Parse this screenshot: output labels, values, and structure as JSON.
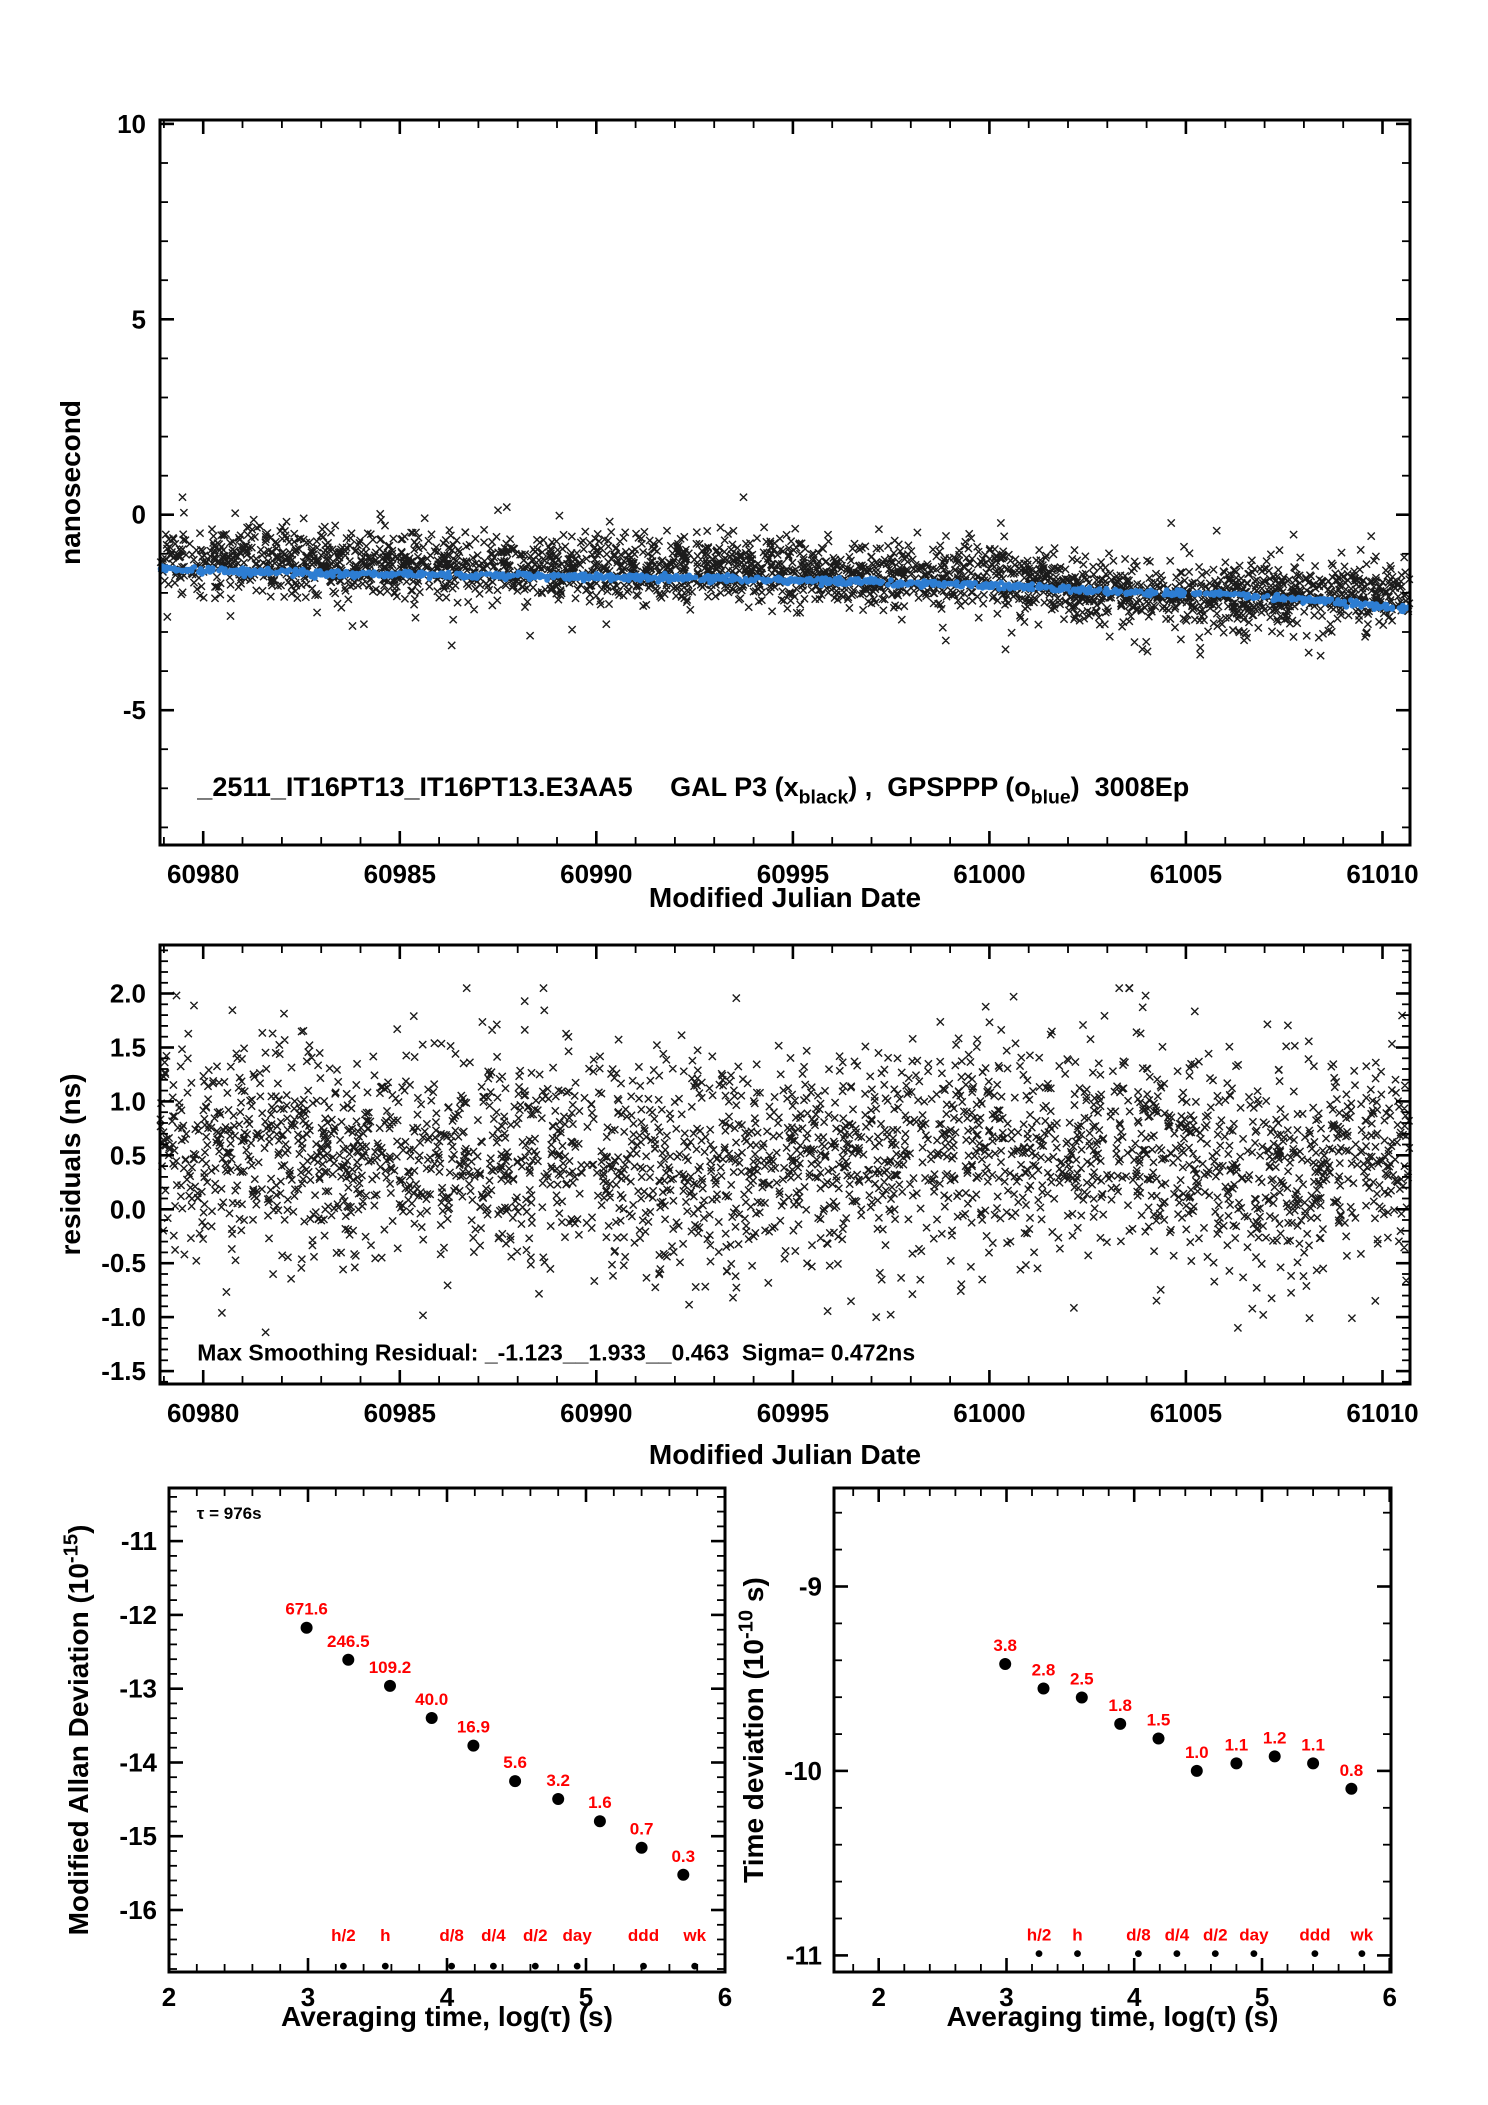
{
  "colors": {
    "background": "#ffffff",
    "axis": "#000000",
    "scatter": "#1b1b1b",
    "blue": "#2d7dd2",
    "red": "#ff0000"
  },
  "chart_data": [
    {
      "id": "phase",
      "type": "scatter",
      "xlabel": "Modified Julian Date",
      "ylabel": "nanosecond",
      "xlim": [
        60978.9,
        61010.7
      ],
      "ylim": [
        -8.45,
        10.1
      ],
      "x_minor": 1,
      "y_minor": 1,
      "xticks": [
        {
          "v": 60980,
          "t": "60980"
        },
        {
          "v": 60985,
          "t": "60985"
        },
        {
          "v": 60990,
          "t": "60990"
        },
        {
          "v": 60995,
          "t": "60995"
        },
        {
          "v": 61000,
          "t": "61000"
        },
        {
          "v": 61005,
          "t": "61005"
        },
        {
          "v": 61010,
          "t": "61010"
        }
      ],
      "yticks": [
        {
          "v": 10,
          "t": "10"
        },
        {
          "v": 5,
          "t": "5"
        },
        {
          "v": 0,
          "t": "0"
        },
        {
          "v": -5,
          "t": "-5"
        }
      ],
      "series": [
        {
          "name": "GAL P3 black x cloud",
          "marker": "x",
          "generated": true,
          "n": 2800,
          "seed": 11,
          "sigma": 0.42,
          "outlier_rate": 0.03,
          "outlier_scale": 2.4,
          "clip": [
            -4.1,
            0.45
          ],
          "trend": [
            [
              60978.9,
              -1.05
            ],
            [
              60982,
              -1.25
            ],
            [
              60986,
              -1.3
            ],
            [
              60990,
              -1.35
            ],
            [
              60994,
              -1.4
            ],
            [
              60997,
              -1.55
            ],
            [
              61000,
              -1.6
            ],
            [
              61002,
              -1.8
            ],
            [
              61004,
              -2.1
            ],
            [
              61006,
              -2.05
            ],
            [
              61008,
              -2.1
            ],
            [
              61010.7,
              -1.95
            ]
          ]
        },
        {
          "name": "GPSPPP blue o line",
          "marker": "o",
          "generated": true,
          "n": 950,
          "seed": 5,
          "sigma": 0.04,
          "clip": [
            -3.0,
            0.0
          ],
          "trend": [
            [
              60978.9,
              -1.38
            ],
            [
              60981,
              -1.45
            ],
            [
              60984,
              -1.52
            ],
            [
              60987,
              -1.55
            ],
            [
              60990,
              -1.6
            ],
            [
              60993,
              -1.62
            ],
            [
              60995,
              -1.68
            ],
            [
              60997,
              -1.72
            ],
            [
              60999,
              -1.78
            ],
            [
              61001,
              -1.85
            ],
            [
              61002.5,
              -1.95
            ],
            [
              61004,
              -2.0
            ],
            [
              61005.5,
              -2.02
            ],
            [
              61007,
              -2.1
            ],
            [
              61008.5,
              -2.2
            ],
            [
              61010,
              -2.35
            ],
            [
              61010.7,
              -2.42
            ]
          ]
        }
      ],
      "annotations": [
        {
          "role": "title",
          "anchor": "start",
          "x": 60979.85,
          "y": -7.2,
          "parts": [
            {
              "t": "_2511_IT16PT13_IT16PT13.E3AA5     GAL P3 (x"
            },
            {
              "t": "black",
              "shift": "sub"
            },
            {
              "t": ") ,  GPSPPP (o"
            },
            {
              "t": "blue",
              "shift": "sub"
            },
            {
              "t": ")  3008Ep"
            }
          ]
        }
      ]
    },
    {
      "id": "residuals",
      "type": "scatter",
      "xlabel": "Modified Julian Date",
      "ylabel": "residuals (ns)",
      "xlim": [
        60978.9,
        61010.7
      ],
      "ylim": [
        -1.62,
        2.45
      ],
      "x_minor": 1,
      "y_minor": 0.1,
      "xticks": [
        {
          "v": 60980,
          "t": "60980"
        },
        {
          "v": 60985,
          "t": "60985"
        },
        {
          "v": 60990,
          "t": "60990"
        },
        {
          "v": 60995,
          "t": "60995"
        },
        {
          "v": 61000,
          "t": "61000"
        },
        {
          "v": 61005,
          "t": "61005"
        },
        {
          "v": 61010,
          "t": "61010"
        }
      ],
      "yticks": [
        {
          "v": 2,
          "t": "2.0"
        },
        {
          "v": 1.5,
          "t": "1.5"
        },
        {
          "v": 1,
          "t": "1.0"
        },
        {
          "v": 0.5,
          "t": "0.5"
        },
        {
          "v": 0,
          "t": "0.0"
        },
        {
          "v": -0.5,
          "t": "-0.5"
        },
        {
          "v": -1,
          "t": "-1.0"
        },
        {
          "v": -1.5,
          "t": "-1.5"
        }
      ],
      "series": [
        {
          "name": "smoothing residuals cloud",
          "marker": "x",
          "generated": true,
          "n": 2800,
          "seed": 23,
          "sigma": 0.5,
          "outlier_rate": 0.02,
          "outlier_scale": 1.8,
          "clip": [
            -1.27,
            2.05
          ],
          "trend": [
            [
              60978.9,
              0.6
            ],
            [
              60990,
              0.45
            ],
            [
              60999,
              0.55
            ],
            [
              61004,
              0.6
            ],
            [
              61007,
              0.3
            ],
            [
              61010.7,
              0.55
            ]
          ]
        }
      ],
      "annotations": [
        {
          "role": "stats",
          "anchor": "start",
          "x": 60979.85,
          "y": -1.4,
          "text": "Max Smoothing Residual: _-1.123__1.933__0.463  Sigma= 0.472ns"
        }
      ]
    },
    {
      "id": "mdev",
      "type": "scatter",
      "xlabel": "Averaging time, log(τ) (s)",
      "ylabel_parts": [
        {
          "t": "Modified Allan Deviation (10"
        },
        {
          "t": "-15",
          "shift": "sup"
        },
        {
          "t": ")"
        }
      ],
      "xlim": [
        2.0,
        6.0
      ],
      "ylim": [
        -16.84,
        -10.28
      ],
      "x_minor": 0.2,
      "y_minor": 0.2,
      "xticks": [
        {
          "v": 2,
          "t": "2"
        },
        {
          "v": 3,
          "t": "3"
        },
        {
          "v": 4,
          "t": "4"
        },
        {
          "v": 5,
          "t": "5"
        },
        {
          "v": 6,
          "t": "6"
        }
      ],
      "yticks": [
        {
          "v": -11,
          "t": "-11"
        },
        {
          "v": -12,
          "t": "-12"
        },
        {
          "v": -13,
          "t": "-13"
        },
        {
          "v": -14,
          "t": "-14"
        },
        {
          "v": -15,
          "t": "-15"
        },
        {
          "v": -16,
          "t": "-16"
        }
      ],
      "points": {
        "x": [
          2.99,
          3.29,
          3.59,
          3.89,
          4.19,
          4.49,
          4.8,
          5.1,
          5.4,
          5.7
        ],
        "y": [
          -12.173,
          -12.608,
          -12.962,
          -13.398,
          -13.772,
          -14.252,
          -14.495,
          -14.796,
          -15.155,
          -15.523
        ],
        "labels": [
          "671.6",
          "246.5",
          "109.2",
          "40.0",
          "16.9",
          "5.6",
          "3.2",
          "1.6",
          "0.7",
          "0.3"
        ]
      },
      "duration_ticks": {
        "labels": [
          "h/2",
          "h",
          "d/8",
          "d/4",
          "d/2",
          "day",
          "ddd",
          "wk"
        ],
        "x": [
          3.255,
          3.556,
          4.033,
          4.334,
          4.635,
          4.937,
          5.414,
          5.782
        ],
        "label_y": -16.42,
        "dot_y": -16.76
      },
      "annotations": [
        {
          "role": "tau",
          "anchor": "start",
          "x": 2.2,
          "y": -10.7,
          "text": "τ = 976s"
        }
      ]
    },
    {
      "id": "tdev",
      "type": "scatter",
      "xlabel": "Averaging time, log(τ) (s)",
      "ylabel_parts": [
        {
          "t": "Time deviation (10"
        },
        {
          "t": "-10",
          "shift": "sup"
        },
        {
          "t": " s)"
        }
      ],
      "xlim": [
        1.65,
        6.01
      ],
      "ylim": [
        -11.09,
        -8.466
      ],
      "x_minor": 0.2,
      "y_minor": 0.2,
      "xticks": [
        {
          "v": 2,
          "t": "2"
        },
        {
          "v": 3,
          "t": "3"
        },
        {
          "v": 4,
          "t": "4"
        },
        {
          "v": 5,
          "t": "5"
        },
        {
          "v": 6,
          "t": "6"
        }
      ],
      "yticks": [
        {
          "v": -9,
          "t": "-9"
        },
        {
          "v": -10,
          "t": "-10"
        },
        {
          "v": -11,
          "t": "-11"
        }
      ],
      "points": {
        "x": [
          2.99,
          3.29,
          3.59,
          3.89,
          4.19,
          4.49,
          4.8,
          5.1,
          5.4,
          5.7
        ],
        "y": [
          -9.42,
          -9.553,
          -9.602,
          -9.745,
          -9.824,
          -10.0,
          -9.959,
          -9.921,
          -9.959,
          -10.097
        ],
        "labels": [
          "3.8",
          "2.8",
          "2.5",
          "1.8",
          "1.5",
          "1.0",
          "1.1",
          "1.2",
          "1.1",
          "0.8"
        ]
      },
      "duration_ticks": {
        "labels": [
          "h/2",
          "h",
          "d/8",
          "d/4",
          "d/2",
          "day",
          "ddd",
          "wk"
        ],
        "x": [
          3.255,
          3.556,
          4.033,
          4.334,
          4.635,
          4.937,
          5.414,
          5.782
        ],
        "label_y": -10.92,
        "dot_y": -10.99
      },
      "annotations": []
    }
  ]
}
